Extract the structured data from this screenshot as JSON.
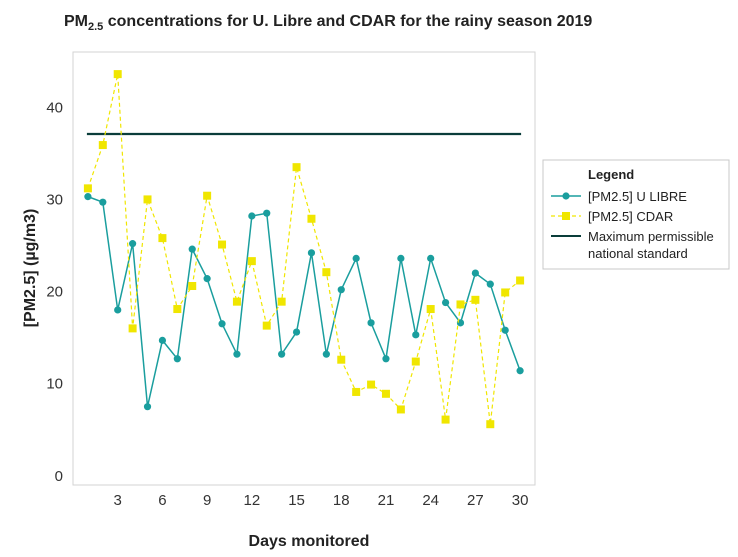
{
  "chart_data": {
    "type": "line",
    "title": {
      "prefix": "PM",
      "subscript": "2.5",
      "rest": " concentrations for U. Libre and CDAR for the rainy season 2019"
    },
    "xlabel": "Days monitored",
    "ylabel": "[PM2.5] (µg/m3)",
    "xlim": [
      0,
      31
    ],
    "ylim": [
      -1,
      46
    ],
    "xticks": [
      3,
      6,
      9,
      12,
      15,
      18,
      21,
      24,
      27,
      30
    ],
    "yticks": [
      0,
      10,
      20,
      30,
      40
    ],
    "x": [
      1,
      2,
      3,
      4,
      5,
      6,
      7,
      8,
      9,
      10,
      11,
      12,
      13,
      14,
      15,
      16,
      17,
      18,
      19,
      20,
      21,
      22,
      23,
      24,
      25,
      26,
      27,
      28,
      29,
      30
    ],
    "series": [
      {
        "name": "[PM2.5] U LIBRE",
        "color": "#1a9e9e",
        "marker": "circle",
        "line": "solid",
        "values": [
          30.3,
          29.7,
          18.0,
          25.2,
          7.5,
          14.7,
          12.7,
          24.6,
          21.4,
          16.5,
          13.2,
          28.2,
          28.5,
          13.2,
          15.6,
          24.2,
          13.2,
          20.2,
          23.6,
          16.6,
          12.7,
          23.6,
          15.3,
          23.6,
          18.8,
          16.6,
          22.0,
          20.8,
          15.8,
          11.4
        ]
      },
      {
        "name": "[PM2.5] CDAR",
        "color": "#f0e600",
        "marker": "square",
        "line": "dashed",
        "values": [
          31.2,
          35.9,
          43.6,
          16.0,
          30.0,
          25.8,
          18.1,
          20.6,
          30.4,
          25.1,
          18.9,
          23.3,
          16.3,
          18.9,
          33.5,
          27.9,
          22.1,
          12.6,
          9.1,
          9.9,
          8.9,
          7.2,
          12.4,
          18.1,
          6.1,
          18.6,
          19.1,
          5.6,
          19.9,
          21.2
        ]
      }
    ],
    "reference_line": {
      "name": "Maximum permissible national standard",
      "label_lines": [
        "Maximum permissible",
        "national standard"
      ],
      "value": 37.1,
      "color": "#0a3d3a"
    },
    "legend": {
      "title": "Legend",
      "placement": "right"
    },
    "grid": false
  }
}
